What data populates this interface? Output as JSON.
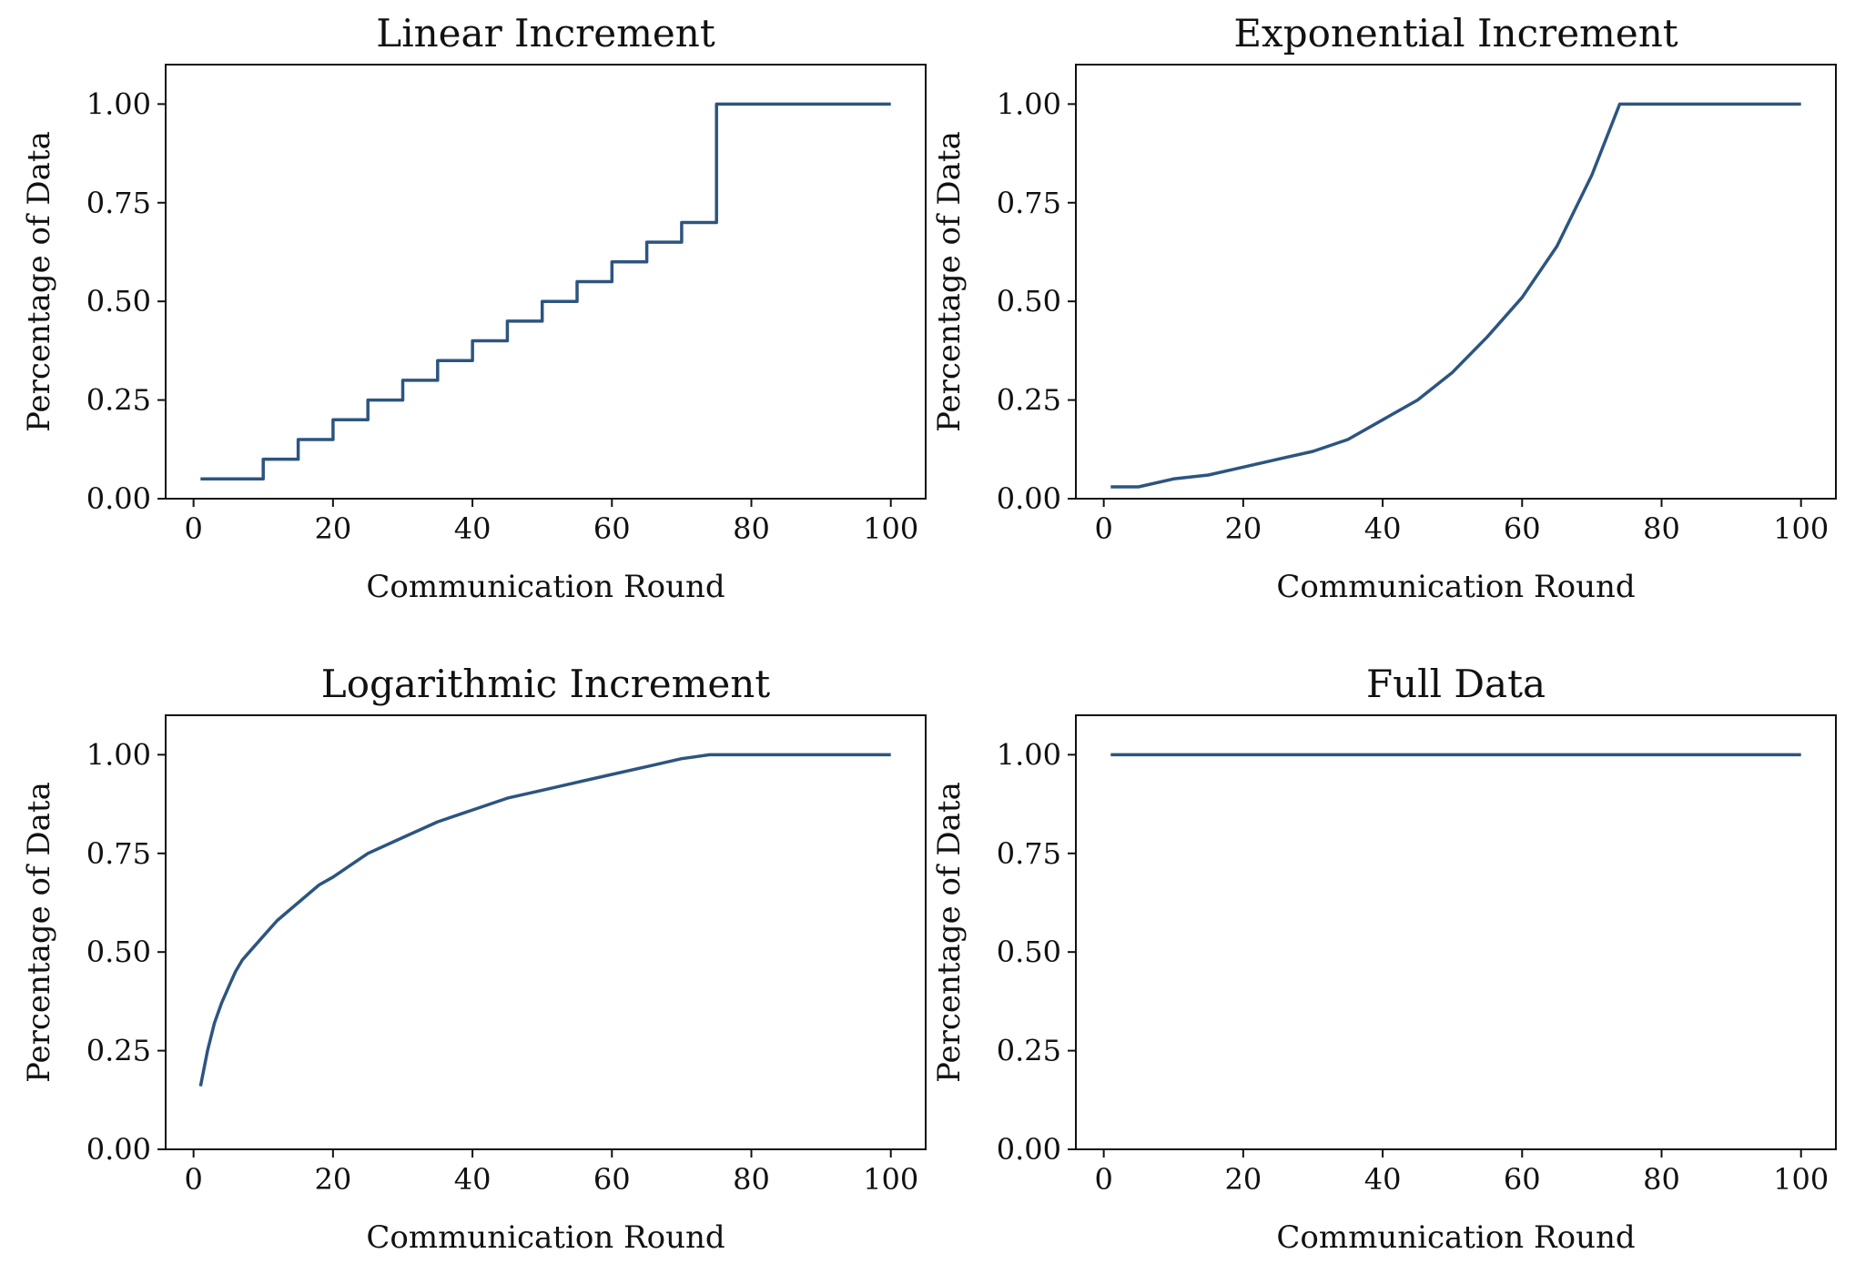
{
  "figure": {
    "line_color": "#2c5580"
  },
  "chart_data": [
    {
      "type": "line",
      "title": "Linear Increment",
      "xlabel": "Communication Round",
      "ylabel": "Percentage of Data",
      "xlim": [
        -4,
        105
      ],
      "ylim": [
        0,
        1.1
      ],
      "xticks": [
        0,
        20,
        40,
        60,
        80,
        100
      ],
      "yticks": [
        0.0,
        0.25,
        0.5,
        0.75,
        1.0
      ],
      "xtick_labels": [
        "0",
        "20",
        "40",
        "60",
        "80",
        "100"
      ],
      "ytick_labels": [
        "0.00",
        "0.25",
        "0.50",
        "0.75",
        "1.00"
      ],
      "grid": false,
      "series": [
        {
          "style": "step",
          "x": [
            1,
            10,
            15,
            20,
            25,
            30,
            35,
            40,
            45,
            50,
            55,
            60,
            65,
            70,
            75,
            100
          ],
          "y": [
            0.05,
            0.1,
            0.15,
            0.2,
            0.25,
            0.3,
            0.35,
            0.4,
            0.45,
            0.5,
            0.55,
            0.6,
            0.65,
            0.7,
            1.0,
            1.0
          ]
        }
      ]
    },
    {
      "type": "line",
      "title": "Exponential Increment",
      "xlabel": "Communication Round",
      "ylabel": "Percentage of Data",
      "xlim": [
        -4,
        105
      ],
      "ylim": [
        0,
        1.1
      ],
      "xticks": [
        0,
        20,
        40,
        60,
        80,
        100
      ],
      "yticks": [
        0.0,
        0.25,
        0.5,
        0.75,
        1.0
      ],
      "xtick_labels": [
        "0",
        "20",
        "40",
        "60",
        "80",
        "100"
      ],
      "ytick_labels": [
        "0.00",
        "0.25",
        "0.50",
        "0.75",
        "1.00"
      ],
      "grid": false,
      "series": [
        {
          "style": "line",
          "x": [
            1,
            5,
            10,
            15,
            20,
            25,
            30,
            35,
            40,
            45,
            50,
            55,
            60,
            65,
            70,
            74,
            100
          ],
          "y": [
            0.03,
            0.03,
            0.05,
            0.06,
            0.08,
            0.1,
            0.12,
            0.15,
            0.2,
            0.25,
            0.32,
            0.41,
            0.51,
            0.64,
            0.82,
            1.0,
            1.0
          ]
        }
      ]
    },
    {
      "type": "line",
      "title": "Logarithmic Increment",
      "xlabel": "Communication Round",
      "ylabel": "Percentage of Data",
      "xlim": [
        -4,
        105
      ],
      "ylim": [
        0,
        1.1
      ],
      "xticks": [
        0,
        20,
        40,
        60,
        80,
        100
      ],
      "yticks": [
        0.0,
        0.25,
        0.5,
        0.75,
        1.0
      ],
      "xtick_labels": [
        "0",
        "20",
        "40",
        "60",
        "80",
        "100"
      ],
      "ytick_labels": [
        "0.00",
        "0.25",
        "0.50",
        "0.75",
        "1.00"
      ],
      "grid": false,
      "series": [
        {
          "style": "line",
          "x": [
            1,
            2,
            3,
            4,
            5,
            6,
            7,
            8,
            10,
            12,
            14,
            16,
            18,
            20,
            25,
            30,
            35,
            40,
            45,
            50,
            55,
            60,
            65,
            70,
            74,
            100
          ],
          "y": [
            0.16,
            0.25,
            0.32,
            0.37,
            0.41,
            0.45,
            0.48,
            0.5,
            0.54,
            0.58,
            0.61,
            0.64,
            0.67,
            0.69,
            0.75,
            0.79,
            0.83,
            0.86,
            0.89,
            0.91,
            0.93,
            0.95,
            0.97,
            0.99,
            1.0,
            1.0
          ]
        }
      ]
    },
    {
      "type": "line",
      "title": "Full Data",
      "xlabel": "Communication Round",
      "ylabel": "Percentage of Data",
      "xlim": [
        -4,
        105
      ],
      "ylim": [
        0,
        1.1
      ],
      "xticks": [
        0,
        20,
        40,
        60,
        80,
        100
      ],
      "yticks": [
        0.0,
        0.25,
        0.5,
        0.75,
        1.0
      ],
      "xtick_labels": [
        "0",
        "20",
        "40",
        "60",
        "80",
        "100"
      ],
      "ytick_labels": [
        "0.00",
        "0.25",
        "0.50",
        "0.75",
        "1.00"
      ],
      "grid": false,
      "series": [
        {
          "style": "line",
          "x": [
            1,
            100
          ],
          "y": [
            1.0,
            1.0
          ]
        }
      ]
    }
  ]
}
